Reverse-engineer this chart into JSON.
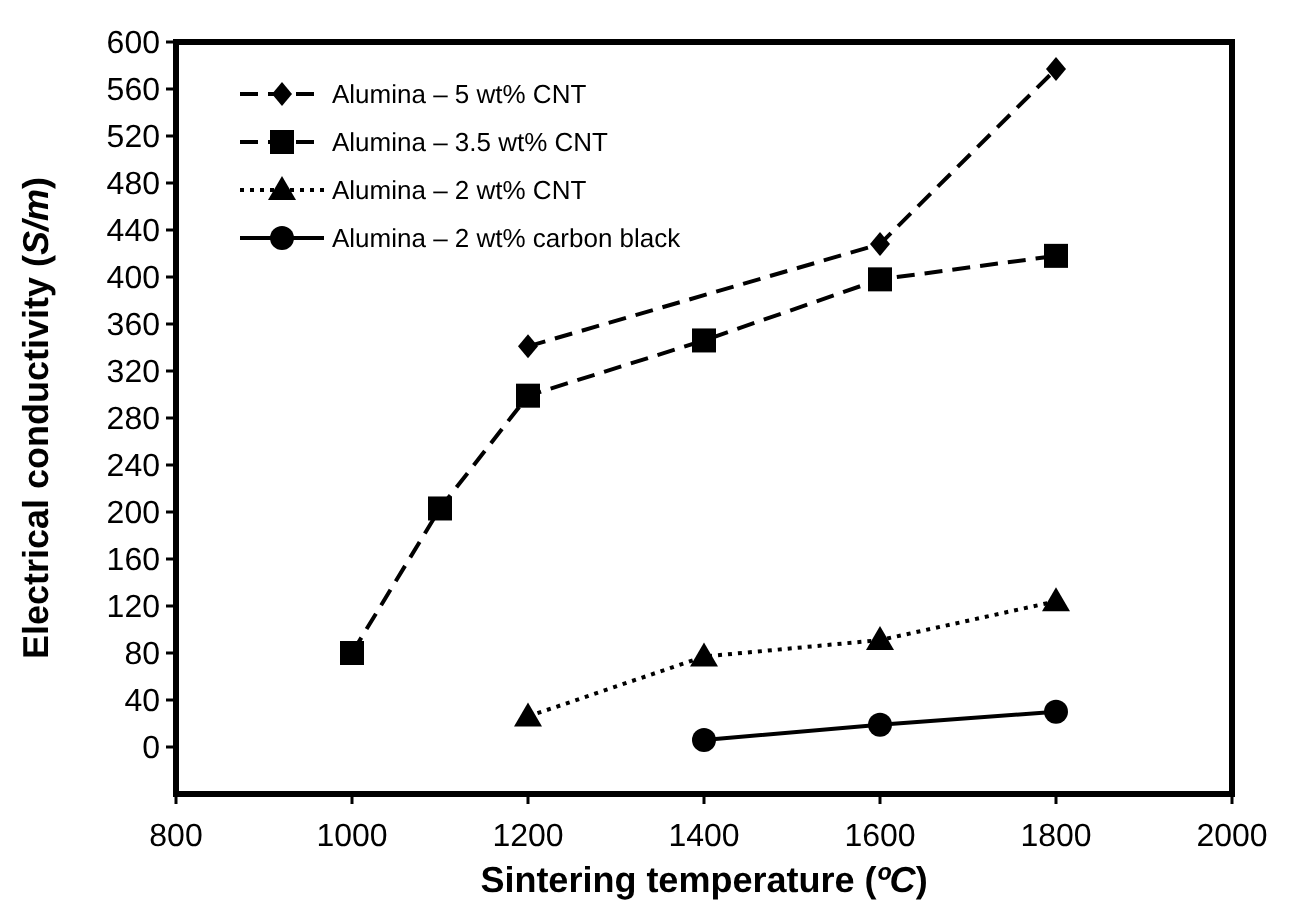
{
  "chart_data": {
    "type": "line",
    "xlabel": "Sintering temperature (ºC)",
    "ylabel": "Electrical conductivity (S/m)",
    "xlim": [
      800,
      2000
    ],
    "xticks": [
      800,
      1000,
      1200,
      1400,
      1600,
      1800,
      2000
    ],
    "ylim": [
      -40,
      600
    ],
    "yticks": [
      0,
      40,
      80,
      120,
      160,
      200,
      240,
      280,
      320,
      360,
      400,
      440,
      480,
      520,
      560,
      600
    ],
    "legend": "top left",
    "grid": false,
    "series": [
      {
        "name": "Alumina – 5 wt% CNT",
        "color": "#000000",
        "marker": "diamond",
        "line_style": "dashed",
        "x": [
          1200,
          1600,
          1800
        ],
        "values": [
          341,
          428,
          577
        ]
      },
      {
        "name": "Alumina – 3.5 wt% CNT",
        "color": "#000000",
        "marker": "square",
        "line_style": "dashed",
        "x": [
          1000,
          1100,
          1200,
          1400,
          1600,
          1800
        ],
        "values": [
          80,
          203,
          299,
          346,
          398,
          418
        ]
      },
      {
        "name": "Alumina – 2 wt% CNT",
        "color": "#000000",
        "marker": "triangle",
        "line_style": "dotted",
        "x": [
          1200,
          1400,
          1600,
          1800
        ],
        "values": [
          26,
          77,
          91,
          124
        ]
      },
      {
        "name": "Alumina – 2 wt% carbon black",
        "color": "#000000",
        "marker": "circle",
        "line_style": "solid",
        "x": [
          1400,
          1600,
          1800
        ],
        "values": [
          6,
          19,
          30
        ]
      }
    ]
  }
}
